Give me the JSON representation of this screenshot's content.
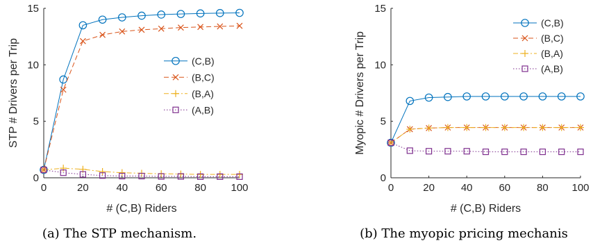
{
  "chart_data": [
    {
      "type": "line",
      "caption": "(a) The STP mechanism.",
      "xlabel": "# (C,B) Riders",
      "ylabel": "STP # Drivers per Trip",
      "xlim": [
        0,
        100
      ],
      "ylim": [
        0,
        15
      ],
      "xticks": [
        0,
        20,
        40,
        60,
        80,
        100
      ],
      "yticks": [
        0,
        5,
        10,
        15
      ],
      "grid": false,
      "legend_position": "center-right",
      "x": [
        0,
        10,
        20,
        30,
        40,
        50,
        60,
        70,
        80,
        90,
        100
      ],
      "series": [
        {
          "name": "(C,B)",
          "color": "#0072BD",
          "marker": "circle",
          "dash": "solid",
          "values": [
            0.7,
            8.7,
            13.5,
            14.0,
            14.2,
            14.35,
            14.45,
            14.5,
            14.55,
            14.58,
            14.6
          ]
        },
        {
          "name": "(B,C)",
          "color": "#D95319",
          "marker": "x",
          "dash": "dashed",
          "values": [
            0.7,
            7.8,
            12.1,
            12.65,
            12.95,
            13.1,
            13.2,
            13.3,
            13.35,
            13.4,
            13.45
          ]
        },
        {
          "name": "(B,A)",
          "color": "#EDB120",
          "marker": "plus",
          "dash": "dashdot",
          "values": [
            0.7,
            0.85,
            0.75,
            0.55,
            0.45,
            0.4,
            0.35,
            0.33,
            0.3,
            0.3,
            0.3
          ]
        },
        {
          "name": "(A,B)",
          "color": "#7E2F8E",
          "marker": "square",
          "dash": "dotted",
          "values": [
            0.7,
            0.45,
            0.3,
            0.2,
            0.15,
            0.15,
            0.12,
            0.12,
            0.1,
            0.1,
            0.1
          ]
        }
      ]
    },
    {
      "type": "line",
      "caption": "(b) The myopic pricing mechanis",
      "xlabel": "# (C,B) Riders",
      "ylabel": "Myopic # Drivers per Trip",
      "xlim": [
        0,
        100
      ],
      "ylim": [
        0,
        15
      ],
      "xticks": [
        0,
        20,
        40,
        60,
        80,
        100
      ],
      "yticks": [
        0,
        5,
        10,
        15
      ],
      "grid": false,
      "legend_position": "top-right",
      "x": [
        0,
        10,
        20,
        30,
        40,
        50,
        60,
        70,
        80,
        90,
        100
      ],
      "series": [
        {
          "name": "(C,B)",
          "color": "#0072BD",
          "marker": "circle",
          "dash": "solid",
          "values": [
            3.1,
            6.8,
            7.1,
            7.15,
            7.2,
            7.2,
            7.2,
            7.2,
            7.2,
            7.2,
            7.2
          ]
        },
        {
          "name": "(B,C)",
          "color": "#D95319",
          "marker": "x",
          "dash": "dashed",
          "values": [
            3.1,
            4.3,
            4.4,
            4.45,
            4.45,
            4.45,
            4.45,
            4.45,
            4.45,
            4.45,
            4.45
          ]
        },
        {
          "name": "(B,A)",
          "color": "#EDB120",
          "marker": "plus",
          "dash": "dashdot",
          "values": [
            3.1,
            4.3,
            4.4,
            4.45,
            4.45,
            4.45,
            4.45,
            4.45,
            4.45,
            4.45,
            4.45
          ]
        },
        {
          "name": "(A,B)",
          "color": "#7E2F8E",
          "marker": "square",
          "dash": "dotted",
          "values": [
            3.1,
            2.4,
            2.35,
            2.35,
            2.35,
            2.3,
            2.3,
            2.3,
            2.3,
            2.3,
            2.3
          ]
        }
      ]
    }
  ]
}
